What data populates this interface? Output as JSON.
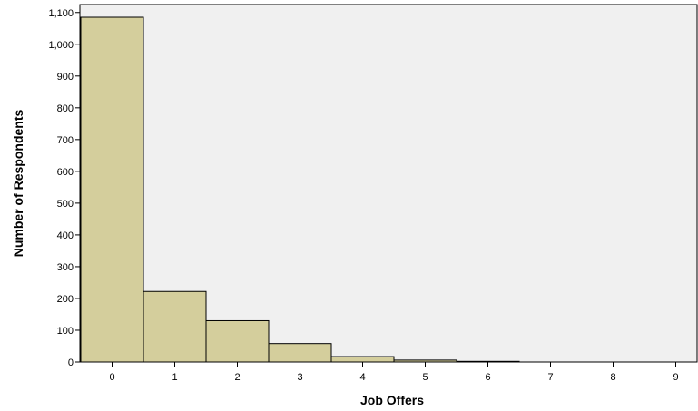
{
  "chart_data": {
    "type": "bar",
    "xlabel": "Job Offers",
    "ylabel": "Number of Respondents",
    "categories": [
      "0",
      "1",
      "2",
      "3",
      "4",
      "5",
      "6",
      "7",
      "8",
      "9"
    ],
    "values": [
      1085,
      222,
      130,
      58,
      17,
      6,
      2,
      0,
      0,
      0
    ],
    "yticks": [
      0,
      100,
      200,
      300,
      400,
      500,
      600,
      700,
      800,
      900,
      1000,
      1100
    ],
    "ytick_labels": [
      "0",
      "100",
      "200",
      "300",
      "400",
      "500",
      "600",
      "700",
      "800",
      "900",
      "1,000",
      "1,100"
    ],
    "ylim": [
      0,
      1125
    ],
    "grid": false,
    "colors": {
      "bar_fill": "#d4ce9c",
      "bar_stroke": "#000000",
      "plot_background": "#f0f0f0"
    }
  }
}
